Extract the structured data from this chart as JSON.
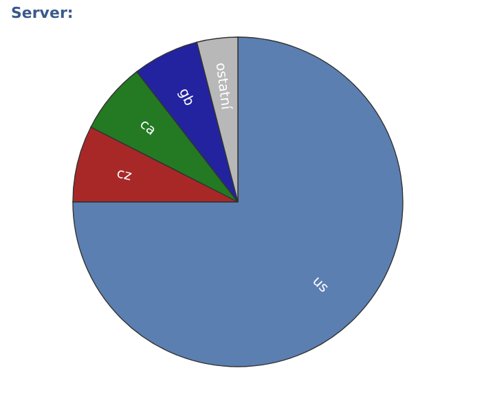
{
  "chart_data": {
    "type": "pie",
    "title": "Server:",
    "categories": [
      "us",
      "cz",
      "ca",
      "gb",
      "ostatní"
    ],
    "values": [
      75,
      7.5,
      7,
      6.5,
      4
    ],
    "colors": [
      "#5b7fb0",
      "#a82828",
      "#237a23",
      "#2323a0",
      "#b8b8b8"
    ],
    "legend": false
  }
}
